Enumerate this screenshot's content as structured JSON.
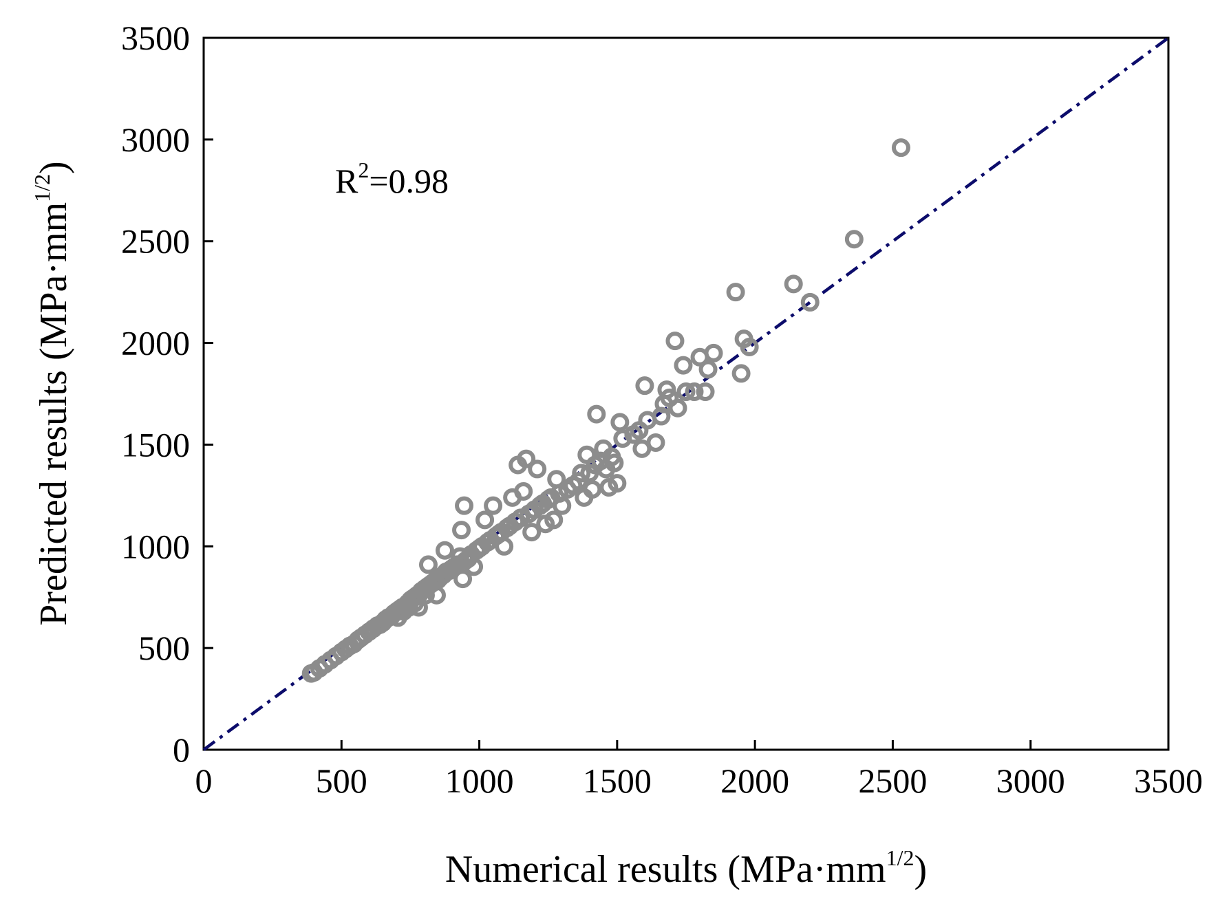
{
  "chart_data": {
    "type": "scatter",
    "xlabel": {
      "main": "Numerical results (MPa·mm",
      "sup": "1/2",
      "close": ")"
    },
    "ylabel": {
      "main": "Predicted results (MPa·mm",
      "sup": "1/2",
      "close": ")"
    },
    "xlim": [
      0,
      3500
    ],
    "ylim": [
      0,
      3500
    ],
    "xticks": [
      0,
      500,
      1000,
      1500,
      2000,
      2500,
      3000,
      3500
    ],
    "yticks": [
      0,
      500,
      1000,
      1500,
      2000,
      2500,
      3000,
      3500
    ],
    "annotation": {
      "prefix": "R",
      "sup": "2",
      "value": "=0.98"
    },
    "reference_line": {
      "name": "y = x",
      "x": [
        0,
        3500
      ],
      "y": [
        0,
        3500
      ],
      "style": "dash-dot"
    },
    "marker_color": "#8c8c8c",
    "line_color": "#0c0c6b",
    "series": [
      {
        "name": "data",
        "points": [
          [
            390,
            375
          ],
          [
            400,
            380
          ],
          [
            420,
            400
          ],
          [
            440,
            420
          ],
          [
            460,
            440
          ],
          [
            480,
            460
          ],
          [
            500,
            480
          ],
          [
            515,
            495
          ],
          [
            530,
            510
          ],
          [
            545,
            520
          ],
          [
            560,
            540
          ],
          [
            570,
            550
          ],
          [
            585,
            565
          ],
          [
            600,
            580
          ],
          [
            615,
            595
          ],
          [
            630,
            610
          ],
          [
            640,
            615
          ],
          [
            650,
            625
          ],
          [
            660,
            640
          ],
          [
            670,
            650
          ],
          [
            680,
            655
          ],
          [
            690,
            670
          ],
          [
            700,
            680
          ],
          [
            705,
            650
          ],
          [
            710,
            690
          ],
          [
            720,
            700
          ],
          [
            725,
            680
          ],
          [
            730,
            705
          ],
          [
            740,
            720
          ],
          [
            745,
            700
          ],
          [
            750,
            735
          ],
          [
            755,
            740
          ],
          [
            760,
            745
          ],
          [
            765,
            720
          ],
          [
            770,
            755
          ],
          [
            775,
            760
          ],
          [
            780,
            700
          ],
          [
            785,
            770
          ],
          [
            790,
            780
          ],
          [
            800,
            790
          ],
          [
            805,
            760
          ],
          [
            810,
            800
          ],
          [
            815,
            910
          ],
          [
            820,
            810
          ],
          [
            830,
            820
          ],
          [
            840,
            830
          ],
          [
            845,
            760
          ],
          [
            850,
            835
          ],
          [
            860,
            850
          ],
          [
            870,
            860
          ],
          [
            875,
            980
          ],
          [
            880,
            875
          ],
          [
            890,
            880
          ],
          [
            900,
            890
          ],
          [
            910,
            900
          ],
          [
            920,
            910
          ],
          [
            930,
            950
          ],
          [
            935,
            1080
          ],
          [
            940,
            840
          ],
          [
            945,
            1200
          ],
          [
            950,
            930
          ],
          [
            960,
            940
          ],
          [
            970,
            960
          ],
          [
            980,
            900
          ],
          [
            990,
            980
          ],
          [
            1000,
            990
          ],
          [
            1010,
            1000
          ],
          [
            1020,
            1130
          ],
          [
            1030,
            1020
          ],
          [
            1040,
            1030
          ],
          [
            1050,
            1200
          ],
          [
            1060,
            1050
          ],
          [
            1070,
            1060
          ],
          [
            1080,
            1070
          ],
          [
            1090,
            1000
          ],
          [
            1100,
            1090
          ],
          [
            1110,
            1100
          ],
          [
            1120,
            1240
          ],
          [
            1130,
            1120
          ],
          [
            1140,
            1400
          ],
          [
            1150,
            1140
          ],
          [
            1160,
            1270
          ],
          [
            1170,
            1430
          ],
          [
            1180,
            1160
          ],
          [
            1190,
            1070
          ],
          [
            1200,
            1180
          ],
          [
            1210,
            1380
          ],
          [
            1220,
            1200
          ],
          [
            1230,
            1210
          ],
          [
            1240,
            1110
          ],
          [
            1250,
            1230
          ],
          [
            1260,
            1240
          ],
          [
            1270,
            1130
          ],
          [
            1280,
            1330
          ],
          [
            1290,
            1260
          ],
          [
            1300,
            1200
          ],
          [
            1320,
            1280
          ],
          [
            1340,
            1300
          ],
          [
            1360,
            1320
          ],
          [
            1370,
            1360
          ],
          [
            1380,
            1240
          ],
          [
            1390,
            1450
          ],
          [
            1400,
            1360
          ],
          [
            1410,
            1280
          ],
          [
            1420,
            1400
          ],
          [
            1425,
            1650
          ],
          [
            1440,
            1420
          ],
          [
            1450,
            1480
          ],
          [
            1460,
            1380
          ],
          [
            1470,
            1290
          ],
          [
            1480,
            1440
          ],
          [
            1490,
            1410
          ],
          [
            1500,
            1310
          ],
          [
            1510,
            1610
          ],
          [
            1520,
            1530
          ],
          [
            1560,
            1550
          ],
          [
            1580,
            1570
          ],
          [
            1590,
            1480
          ],
          [
            1600,
            1790
          ],
          [
            1610,
            1620
          ],
          [
            1640,
            1510
          ],
          [
            1660,
            1640
          ],
          [
            1670,
            1700
          ],
          [
            1680,
            1770
          ],
          [
            1690,
            1730
          ],
          [
            1710,
            2010
          ],
          [
            1720,
            1680
          ],
          [
            1740,
            1890
          ],
          [
            1750,
            1760
          ],
          [
            1780,
            1760
          ],
          [
            1800,
            1930
          ],
          [
            1820,
            1760
          ],
          [
            1830,
            1870
          ],
          [
            1850,
            1950
          ],
          [
            1930,
            2250
          ],
          [
            1950,
            1850
          ],
          [
            1960,
            2020
          ],
          [
            1980,
            1980
          ],
          [
            2140,
            2290
          ],
          [
            2200,
            2200
          ],
          [
            2360,
            2510
          ],
          [
            2530,
            2960
          ]
        ]
      }
    ]
  }
}
